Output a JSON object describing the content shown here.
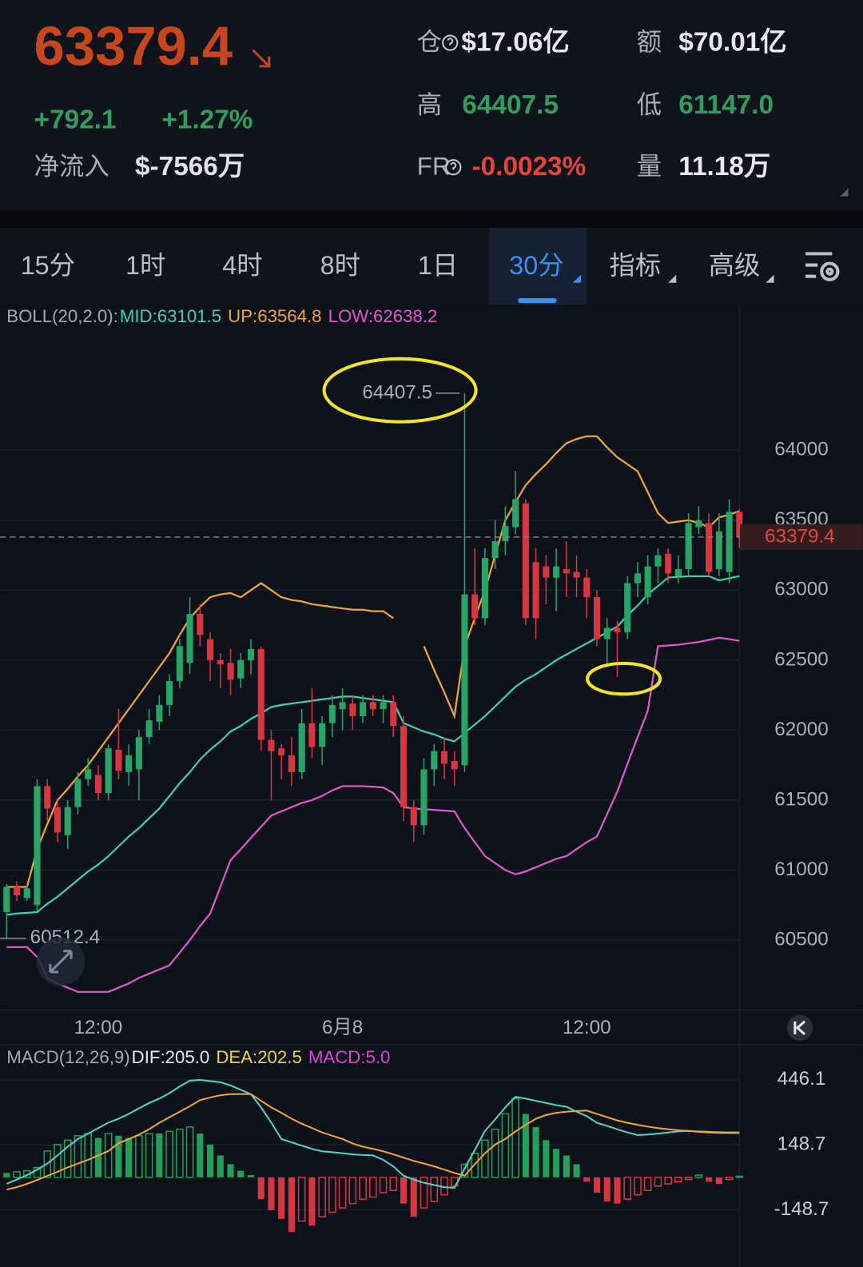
{
  "header": {
    "price": "63379.4",
    "change": "+792.1",
    "change_pct": "+1.27%",
    "net_inflow_label": "净流入",
    "net_inflow": "$-7566万",
    "oi_label": "仓",
    "oi": "$17.06亿",
    "turnover_label": "额",
    "turnover": "$70.01亿",
    "high_label": "高",
    "high": "64407.5",
    "low_label": "低",
    "low": "61147.0",
    "fr_label": "FR",
    "fr": "-0.0023%",
    "volume_label": "量",
    "volume": "11.18万"
  },
  "tabs": [
    "15分",
    "1时",
    "4时",
    "8时",
    "1日",
    "30分",
    "指标",
    "高级"
  ],
  "chart_data": [
    {
      "type": "candlestick",
      "legend": [
        {
          "text": "BOLL(20,2.0):",
          "color": "#a3a9b4"
        },
        {
          "text": "MID:63101.5",
          "color": "#3fd0b4"
        },
        {
          "text": "UP:63564.8",
          "color": "#f2a630"
        },
        {
          "text": "LOW:62638.2",
          "color": "#e456cf"
        }
      ],
      "categories": [
        null,
        null,
        null,
        null,
        null,
        null,
        null,
        null,
        null,
        "12:00",
        null,
        null,
        null,
        null,
        null,
        null,
        null,
        null,
        null,
        null,
        null,
        null,
        null,
        null,
        null,
        null,
        null,
        null,
        null,
        null,
        null,
        null,
        null,
        "6月8",
        null,
        null,
        null,
        null,
        null,
        null,
        null,
        null,
        null,
        null,
        null,
        null,
        null,
        null,
        null,
        null,
        null,
        null,
        null,
        null,
        null,
        null,
        null,
        "12:00",
        null,
        null,
        null,
        null,
        null,
        null,
        null,
        null,
        null,
        null,
        null,
        null,
        null,
        null,
        null
      ],
      "open": [
        60700,
        60880,
        60800,
        60750,
        61600,
        61450,
        61250,
        61450,
        61650,
        61680,
        61550,
        61860,
        61700,
        61720,
        61950,
        62060,
        62180,
        62350,
        62480,
        62830,
        62650,
        62500,
        62480,
        62370,
        62500,
        62580,
        61930,
        61870,
        61820,
        61700,
        62050,
        61880,
        62050,
        62150,
        62190,
        62100,
        62200,
        62150,
        62200,
        62030,
        61450,
        61320,
        61720,
        61850,
        61780,
        61750,
        62970,
        62800,
        63230,
        63350,
        63450,
        63620,
        63200,
        63170,
        63090,
        63150,
        63130,
        63090,
        62950,
        62650,
        62730,
        62700,
        63050,
        62950,
        63170,
        63260,
        63100,
        63150,
        63450,
        63480,
        63150,
        63130,
        63560
      ],
      "high": [
        60900,
        60920,
        60900,
        61650,
        61650,
        61500,
        61500,
        61700,
        61800,
        61750,
        61900,
        62150,
        61900,
        62000,
        62150,
        62250,
        62400,
        62650,
        62950,
        62900,
        62700,
        62550,
        62580,
        62550,
        62650,
        62600,
        62000,
        61900,
        61950,
        62150,
        62300,
        62100,
        62250,
        62300,
        62250,
        62250,
        62250,
        62250,
        62250,
        62100,
        61500,
        61800,
        61900,
        61950,
        61850,
        64407.5,
        63300,
        63300,
        63500,
        63600,
        63850,
        63650,
        63300,
        63250,
        63300,
        63350,
        63250,
        63150,
        63000,
        62800,
        62780,
        63100,
        63200,
        63250,
        63300,
        63300,
        63250,
        63550,
        63600,
        63550,
        63550,
        63650,
        63580
      ],
      "low": [
        60512.4,
        60780,
        60780,
        60700,
        61350,
        61200,
        61150,
        61400,
        61600,
        61500,
        61500,
        61650,
        61600,
        61500,
        61900,
        62000,
        62100,
        62300,
        62400,
        62600,
        62350,
        62300,
        62250,
        62300,
        62400,
        61850,
        61500,
        61650,
        61600,
        61650,
        61800,
        61750,
        61950,
        62000,
        62000,
        62050,
        62100,
        62050,
        61950,
        61350,
        61200,
        61250,
        61600,
        61650,
        61600,
        61700,
        62750,
        62750,
        63150,
        63250,
        63400,
        62750,
        62650,
        62900,
        62850,
        62950,
        62950,
        62800,
        62600,
        62450,
        62380,
        62650,
        62950,
        62900,
        63050,
        63050,
        63050,
        63100,
        63400,
        63100,
        63100,
        63050,
        63300
      ],
      "close": [
        60880,
        60820,
        60870,
        61600,
        61440,
        61270,
        61450,
        61650,
        61720,
        61550,
        61870,
        61710,
        61820,
        61950,
        62070,
        62180,
        62350,
        62600,
        62830,
        62680,
        62500,
        62470,
        62360,
        62500,
        62580,
        61930,
        61850,
        61820,
        61700,
        62050,
        61880,
        62050,
        62180,
        62200,
        62100,
        62200,
        62150,
        62200,
        62030,
        61450,
        61320,
        61720,
        61850,
        61760,
        61720,
        62970,
        62800,
        63230,
        63350,
        63460,
        63650,
        62800,
        62800,
        63090,
        63170,
        63120,
        63090,
        62950,
        62650,
        62730,
        62700,
        63050,
        63120,
        63170,
        63250,
        63120,
        63150,
        63480,
        63500,
        63130,
        63420,
        63560,
        63379.4
      ],
      "up_color": "#25a566",
      "down_color": "#d93541",
      "lines": [
        {
          "color": "#f2a630",
          "values": [
            60880,
            60880,
            60880,
            61150,
            61330,
            61500,
            61580,
            61670,
            61750,
            61850,
            61950,
            62050,
            62150,
            62250,
            62350,
            62450,
            62550,
            62680,
            62800,
            62880,
            62950,
            62970,
            62980,
            62950,
            63000,
            63050,
            63000,
            62950,
            62930,
            62920,
            62900,
            62890,
            62880,
            62870,
            62860,
            62860,
            62850,
            62850,
            62800,
            null,
            null,
            62600,
            62430,
            62270,
            62100,
            62600,
            62800,
            63000,
            63250,
            63500,
            63630,
            63750,
            63830,
            63900,
            63980,
            64050,
            64080,
            64100,
            64100,
            64020,
            63950,
            63900,
            63850,
            63700,
            63550,
            63480,
            63490,
            63500,
            63480,
            63450,
            63520,
            63540,
            63564.8
          ]
        },
        {
          "color": "#3fd0b4",
          "values": [
            60680,
            60690,
            60695,
            60700,
            60760,
            60810,
            60870,
            60930,
            60990,
            61040,
            61100,
            61170,
            61240,
            61300,
            61370,
            61440,
            61530,
            61620,
            61700,
            61790,
            61860,
            61920,
            61990,
            62030,
            62080,
            62120,
            62165,
            62180,
            62190,
            62200,
            62210,
            62220,
            62230,
            62240,
            62240,
            62230,
            62220,
            62210,
            62200,
            62050,
            62020,
            61990,
            61970,
            61940,
            61920,
            61980,
            62040,
            62100,
            62170,
            62240,
            62310,
            62360,
            62400,
            62450,
            62500,
            62540,
            62580,
            62620,
            62660,
            62700,
            62740,
            62820,
            62890,
            62970,
            63030,
            63090,
            63095,
            63100,
            63100,
            63100,
            63070,
            63085,
            63101.5
          ]
        },
        {
          "color": "#e456cf",
          "values": [
            60450,
            60450,
            60450,
            60380,
            60230,
            60190,
            60160,
            60130,
            60130,
            60130,
            60130,
            60160,
            60190,
            60230,
            60260,
            60290,
            60320,
            60410,
            60500,
            60600,
            60690,
            60880,
            61070,
            61150,
            61230,
            61310,
            61390,
            61420,
            61450,
            61480,
            61500,
            61530,
            61570,
            61600,
            61600,
            61600,
            61595,
            61590,
            61550,
            61450,
            61440,
            61435,
            61430,
            61425,
            61420,
            61300,
            61200,
            61100,
            61050,
            61000,
            60970,
            60990,
            61020,
            61050,
            61080,
            61100,
            61150,
            61200,
            61240,
            61400,
            61560,
            61760,
            61950,
            62140,
            62600,
            62605,
            62610,
            62620,
            62630,
            62645,
            62660,
            62650,
            62638.2
          ]
        }
      ],
      "ylim": [
        60000,
        65000
      ],
      "yticks": [
        60500,
        61000,
        61500,
        62000,
        62500,
        63000,
        63500,
        64000
      ],
      "last_price_label": "63379.4",
      "annotations": [
        {
          "text": "64407.5"
        },
        {
          "text": "60512.4"
        }
      ]
    },
    {
      "type": "macd",
      "legend": [
        {
          "text": "MACD(12,26,9)",
          "color": "#a3a9b4"
        },
        {
          "text": "DIF:205.0",
          "color": "#e8e9ec"
        },
        {
          "text": "DEA:202.5",
          "color": "#f0d43a"
        },
        {
          "text": "MACD:5.0",
          "color": "#df3fdc"
        }
      ],
      "histogram": {
        "up_color": "#22a05a",
        "down_color": "#d93541",
        "values": [
          20,
          25,
          30,
          45,
          120,
          150,
          170,
          190,
          200,
          180,
          200,
          190,
          180,
          190,
          200,
          200,
          210,
          220,
          230,
          200,
          150,
          100,
          60,
          30,
          10,
          -100,
          -150,
          -190,
          -250,
          -200,
          -220,
          -180,
          -160,
          -140,
          -120,
          -100,
          -90,
          -70,
          -60,
          -120,
          -180,
          -140,
          -110,
          -80,
          -40,
          60,
          110,
          170,
          220,
          290,
          360,
          290,
          230,
          170,
          130,
          100,
          60,
          -20,
          -70,
          -110,
          -120,
          -100,
          -80,
          -60,
          -40,
          -30,
          -20,
          -10,
          10,
          -20,
          -30,
          -10,
          5
        ]
      },
      "lines": [
        {
          "color": "#4fd6c8",
          "values": [
            -30,
            -10,
            10,
            35,
            63,
            100,
            140,
            175,
            200,
            225,
            250,
            268,
            290,
            315,
            340,
            360,
            385,
            415,
            442,
            445,
            440,
            435,
            420,
            400,
            380,
            320,
            250,
            175,
            160,
            145,
            130,
            119,
            115,
            110,
            105,
            102,
            100,
            80,
            50,
            7,
            -10,
            -25,
            -35,
            -45,
            -48,
            40,
            125,
            212,
            265,
            320,
            368,
            360,
            350,
            340,
            330,
            323,
            300,
            280,
            249,
            235,
            220,
            205,
            193,
            196,
            200,
            205,
            210,
            212,
            210,
            208,
            206,
            205,
            205
          ]
        },
        {
          "color": "#f2a630",
          "values": [
            -56,
            -45,
            -30,
            -12,
            7,
            25,
            45,
            63,
            80,
            100,
            120,
            156,
            175,
            195,
            220,
            249,
            275,
            300,
            325,
            353,
            365,
            375,
            380,
            380,
            380,
            350,
            320,
            295,
            268,
            245,
            225,
            205,
            190,
            175,
            155,
            140,
            130,
            119,
            105,
            90,
            75,
            63,
            50,
            35,
            20,
            7,
            60,
            110,
            150,
            175,
            210,
            240,
            268,
            285,
            295,
            300,
            303,
            305,
            290,
            275,
            260,
            249,
            240,
            232,
            225,
            220,
            215,
            212,
            208,
            205,
            203,
            202.5,
            202.5
          ]
        }
      ],
      "ylim": [
        -410,
        580
      ],
      "yticks": [
        446.1,
        148.7,
        -148.7
      ]
    }
  ]
}
